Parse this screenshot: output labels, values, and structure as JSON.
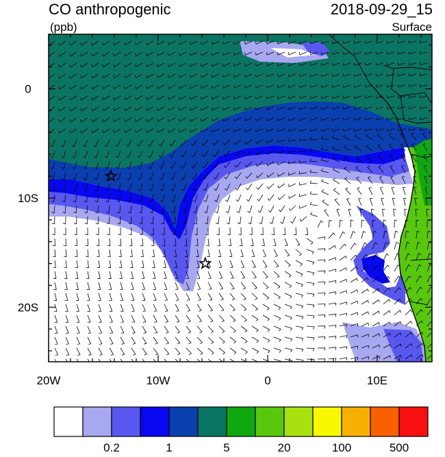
{
  "header": {
    "title": "CO anthropogenic",
    "units": "(ppb)",
    "datetime": "2018-09-29_15",
    "level": "Surface"
  },
  "map": {
    "lon_range": [
      -20,
      15
    ],
    "lat_range": [
      -25,
      5
    ],
    "x_tick_labels": [
      "20W",
      "10W",
      "0",
      "10E"
    ],
    "y_tick_labels": [
      "0",
      "10S",
      "20S"
    ],
    "markers": [
      {
        "symbol": "star",
        "lon": -14.3,
        "lat": -8.0
      },
      {
        "symbol": "star",
        "lon": -5.7,
        "lat": -16.0
      }
    ]
  },
  "colorbar": {
    "colors": [
      "#ffffff",
      "#a8a8f0",
      "#5858f0",
      "#0808f0",
      "#0a3fb0",
      "#0a7563",
      "#10a810",
      "#58c80c",
      "#a8e010",
      "#f8f800",
      "#f8b000",
      "#f86000",
      "#f81010"
    ],
    "labels": [
      "0.2",
      "1",
      "5",
      "20",
      "100",
      "500"
    ],
    "label_after_box": [
      1,
      3,
      5,
      7,
      9,
      11
    ]
  }
}
